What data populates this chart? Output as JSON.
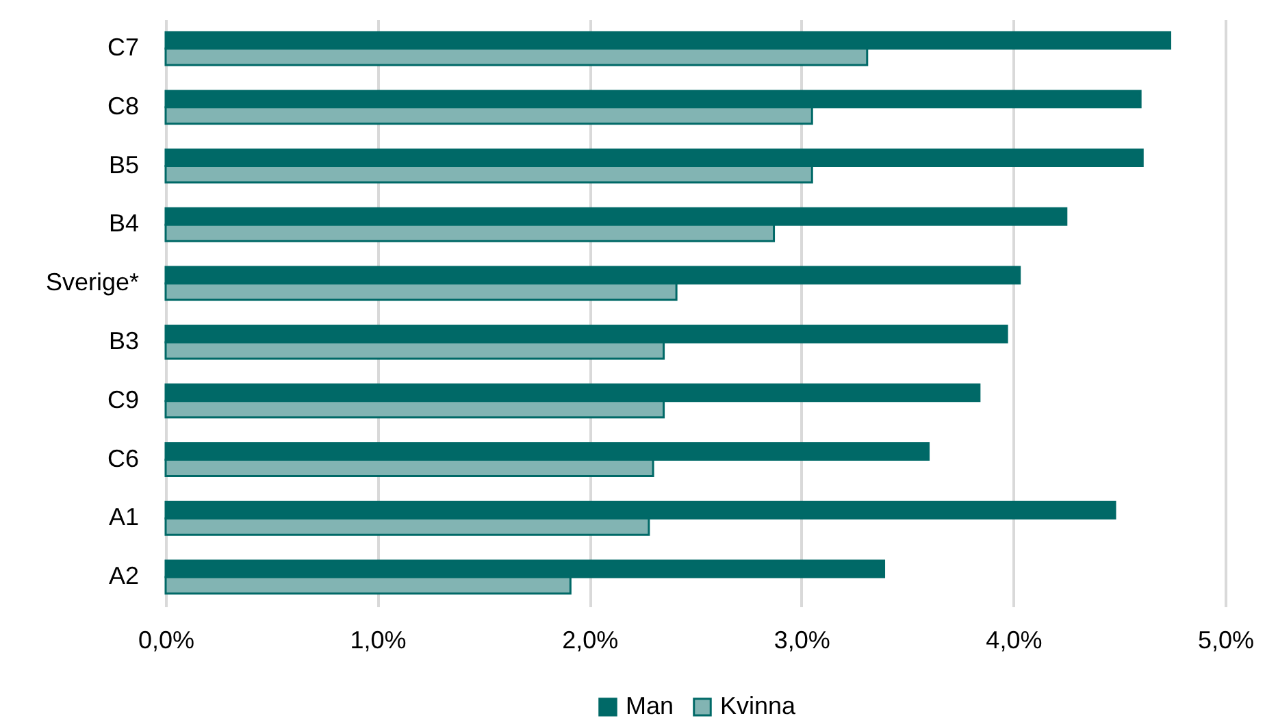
{
  "chart_data": {
    "type": "bar",
    "orientation": "horizontal",
    "categories": [
      "C7",
      "C8",
      "B5",
      "B4",
      "Sverige*",
      "B3",
      "C9",
      "C6",
      "A1",
      "A2"
    ],
    "series": [
      {
        "name": "Man",
        "color": "#006967",
        "values": [
          4.74,
          4.6,
          4.61,
          4.25,
          4.03,
          3.97,
          3.84,
          3.6,
          4.48,
          3.39
        ]
      },
      {
        "name": "Kvinna",
        "color": "#82b4b3",
        "values": [
          3.31,
          3.05,
          3.05,
          2.87,
          2.41,
          2.35,
          2.35,
          2.3,
          2.28,
          1.91
        ]
      }
    ],
    "xlim": [
      0,
      5
    ],
    "xticks": [
      {
        "value": 0,
        "label": "0,0%"
      },
      {
        "value": 1,
        "label": "1,0%"
      },
      {
        "value": 2,
        "label": "2,0%"
      },
      {
        "value": 3,
        "label": "3,0%"
      },
      {
        "value": 4,
        "label": "4,0%"
      },
      {
        "value": 5,
        "label": "5,0%"
      }
    ],
    "grid": "x",
    "legend": "bottom"
  }
}
